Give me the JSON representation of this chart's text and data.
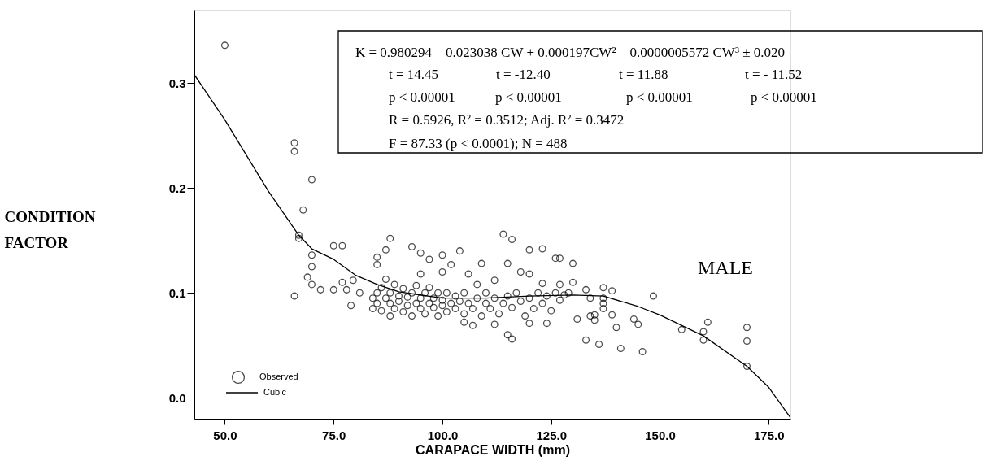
{
  "chart_data": {
    "type": "scatter",
    "xlabel": "CARAPACE WIDTH (mm)",
    "ylabel": "CONDITION FACTOR",
    "xlim": [
      43,
      180
    ],
    "ylim": [
      -0.02,
      0.37
    ],
    "xticks": [
      {
        "value": 50,
        "label": "50.0"
      },
      {
        "value": 75,
        "label": "75.0"
      },
      {
        "value": 100,
        "label": "100.0"
      },
      {
        "value": 125,
        "label": "125.0"
      },
      {
        "value": 150,
        "label": "150.0"
      },
      {
        "value": 175,
        "label": "175.0"
      }
    ],
    "yticks": [
      {
        "value": 0,
        "label": "0.0"
      },
      0.1,
      0.2,
      0.3
    ],
    "grid": false,
    "legend": "bottom left",
    "annotations": [
      "K = 0.980294 – 0.023038 CW + 0.000197CW² – 0.0000005572 CW³ ± 0.020",
      "t = 14.45",
      "t = -12.40",
      "t = 11.88",
      "t = - 11.52",
      "p < 0.00001",
      "p < 0.00001",
      "p < 0.00001",
      "p < 0.00001",
      "R = 0.5926, R² = 0.3512; Adj. R² = 0.3472",
      "F = 87.33 (p < 0.0001); N = 488",
      "MALE"
    ],
    "series": [
      {
        "name": "Observed",
        "marker": "circle",
        "color": "#000000",
        "x": [
          50,
          66,
          66,
          70,
          68,
          67,
          67,
          66,
          70,
          70,
          69,
          70,
          72,
          75,
          77,
          75,
          77,
          78,
          79.5,
          79,
          81,
          88,
          87,
          85,
          85,
          93,
          95,
          97,
          100,
          114,
          116,
          120,
          123,
          126,
          127,
          130,
          115,
          109,
          115,
          116,
          133,
          137,
          139,
          134,
          137,
          137,
          137,
          139,
          134,
          135,
          135,
          131,
          140,
          144,
          145,
          133,
          136,
          141,
          146,
          148.5,
          155,
          160,
          160,
          161,
          170,
          170,
          170,
          120,
          124,
          112,
          107,
          105,
          123,
          127,
          130,
          118,
          120,
          84,
          84,
          85,
          85,
          86,
          86,
          87,
          87,
          88,
          88,
          88,
          89,
          89,
          90,
          90,
          91,
          91,
          92,
          92,
          93,
          93,
          94,
          94,
          95,
          95,
          95,
          96,
          96,
          97,
          97,
          98,
          98,
          99,
          99,
          100,
          100,
          100,
          101,
          101,
          102,
          102,
          103,
          103,
          104,
          104,
          105,
          105,
          106,
          106,
          107,
          108,
          108,
          109,
          110,
          110,
          111,
          112,
          112,
          113,
          114,
          115,
          116,
          117,
          118,
          119,
          120,
          121,
          122,
          123,
          124,
          125,
          126,
          127,
          128,
          129
        ],
        "values": [
          0.336,
          0.243,
          0.235,
          0.208,
          0.179,
          0.155,
          0.152,
          0.097,
          0.136,
          0.125,
          0.115,
          0.108,
          0.103,
          0.145,
          0.145,
          0.103,
          0.11,
          0.103,
          0.112,
          0.088,
          0.1,
          0.152,
          0.141,
          0.134,
          0.127,
          0.144,
          0.138,
          0.132,
          0.136,
          0.156,
          0.151,
          0.141,
          0.142,
          0.133,
          0.133,
          0.128,
          0.128,
          0.128,
          0.06,
          0.056,
          0.103,
          0.105,
          0.102,
          0.095,
          0.095,
          0.09,
          0.085,
          0.079,
          0.078,
          0.079,
          0.074,
          0.075,
          0.067,
          0.075,
          0.07,
          0.055,
          0.051,
          0.047,
          0.044,
          0.097,
          0.065,
          0.063,
          0.055,
          0.072,
          0.067,
          0.054,
          0.03,
          0.071,
          0.071,
          0.07,
          0.069,
          0.072,
          0.109,
          0.108,
          0.11,
          0.12,
          0.118,
          0.095,
          0.085,
          0.1,
          0.09,
          0.105,
          0.083,
          0.095,
          0.113,
          0.078,
          0.09,
          0.1,
          0.085,
          0.108,
          0.092,
          0.097,
          0.082,
          0.104,
          0.088,
          0.096,
          0.078,
          0.1,
          0.09,
          0.107,
          0.085,
          0.095,
          0.118,
          0.08,
          0.1,
          0.09,
          0.105,
          0.086,
          0.095,
          0.078,
          0.1,
          0.088,
          0.093,
          0.12,
          0.082,
          0.1,
          0.09,
          0.127,
          0.085,
          0.097,
          0.14,
          0.092,
          0.08,
          0.1,
          0.09,
          0.118,
          0.085,
          0.095,
          0.108,
          0.078,
          0.09,
          0.1,
          0.085,
          0.095,
          0.112,
          0.08,
          0.09,
          0.097,
          0.086,
          0.1,
          0.092,
          0.078,
          0.095,
          0.085,
          0.1,
          0.09,
          0.097,
          0.083,
          0.1,
          0.093,
          0.098,
          0.1
        ]
      },
      {
        "name": "Cubic",
        "type": "line",
        "line_style": "solid",
        "color": "#000000",
        "x": [
          43,
          50,
          60,
          67,
          70,
          75,
          80,
          85,
          90,
          100,
          110,
          120,
          130,
          137,
          145,
          150,
          160,
          170,
          175,
          180
        ],
        "values": [
          0.308,
          0.265,
          0.197,
          0.155,
          0.142,
          0.132,
          0.117,
          0.108,
          0.101,
          0.095,
          0.095,
          0.097,
          0.098,
          0.097,
          0.087,
          0.079,
          0.059,
          0.03,
          0.01,
          -0.019
        ]
      }
    ]
  }
}
